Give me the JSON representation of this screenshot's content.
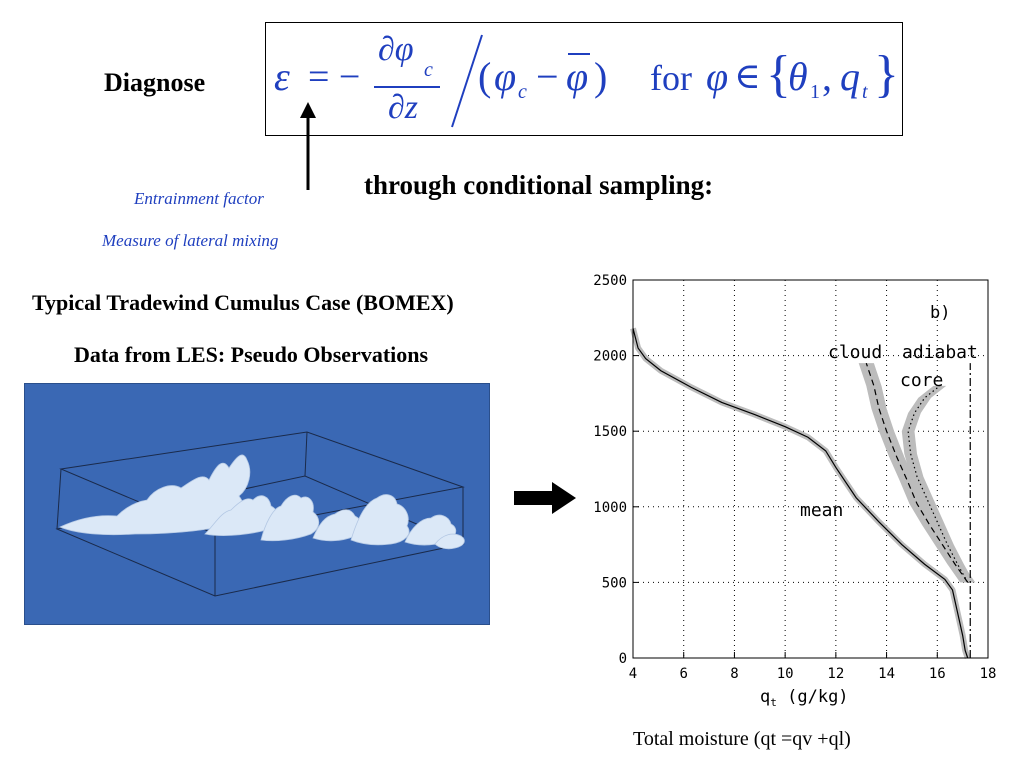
{
  "slide": {
    "diagnose_label": "Diagnose",
    "subtitle": "through conditional sampling:",
    "annotation_entrainment": "Entrainment factor",
    "annotation_mixing": "Measure of lateral mixing",
    "case_title": "Typical Tradewind Cumulus Case (BOMEX)",
    "data_source": "Data from LES: Pseudo Observations",
    "caption": "Total moisture (qt =qv +ql)"
  },
  "equation": {
    "lhs": "ε",
    "equals": "= −",
    "numerator": "∂φ",
    "numerator_sub": "c",
    "denominator": "∂z",
    "paren_open": "(",
    "phi_c": "φ",
    "phi_c_sub": "c",
    "minus": "−",
    "phi_bar": "φ",
    "paren_close": ")",
    "for_text": "for",
    "phi": "φ",
    "element_of": "∈",
    "set_open": "{",
    "theta": "θ",
    "theta_sub": "1",
    "comma": ",",
    "q": "q",
    "q_sub": "t",
    "set_close": "}"
  },
  "colors": {
    "equation_text": "#1f3fbf",
    "annotation_text": "#1f3fbf",
    "cloud_background": "#3a68b4",
    "cloud_fill": "#dbe8f7",
    "band_fill": "#bcbcbc"
  },
  "chart_data": {
    "type": "line",
    "panel_label": "b)",
    "xlabel": "q",
    "xlabel_sub": "t",
    "xlabel_units": "(g/kg)",
    "ylabel": "",
    "xlim": [
      4,
      18
    ],
    "ylim": [
      0,
      2500
    ],
    "x_ticks": [
      "4",
      "6",
      "8",
      "10",
      "12",
      "14",
      "16",
      "18"
    ],
    "y_ticks": [
      "0",
      "500",
      "1000",
      "1500",
      "2000",
      "2500"
    ],
    "grid": true,
    "annotations": {
      "cloud": "cloud",
      "adiabat": "adiabat",
      "core": "core",
      "mean": "mean"
    },
    "series": [
      {
        "name": "mean",
        "style": "solid",
        "points": [
          [
            17.2,
            0
          ],
          [
            17.1,
            50
          ],
          [
            17.0,
            150
          ],
          [
            16.8,
            300
          ],
          [
            16.6,
            450
          ],
          [
            16.3,
            520
          ],
          [
            15.5,
            620
          ],
          [
            14.6,
            750
          ],
          [
            13.7,
            900
          ],
          [
            12.8,
            1060
          ],
          [
            12.0,
            1260
          ],
          [
            11.6,
            1370
          ],
          [
            10.9,
            1460
          ],
          [
            10.0,
            1530
          ],
          [
            8.8,
            1610
          ],
          [
            7.5,
            1690
          ],
          [
            6.3,
            1790
          ],
          [
            5.1,
            1900
          ],
          [
            4.5,
            1980
          ],
          [
            4.2,
            2050
          ],
          [
            4.0,
            2180
          ]
        ]
      },
      {
        "name": "cloud",
        "style": "dashed",
        "band_halfwidth": 0.3,
        "points": [
          [
            17.2,
            500
          ],
          [
            16.7,
            620
          ],
          [
            16.2,
            750
          ],
          [
            15.7,
            880
          ],
          [
            15.2,
            1020
          ],
          [
            14.8,
            1180
          ],
          [
            14.4,
            1330
          ],
          [
            14.0,
            1500
          ],
          [
            13.7,
            1650
          ],
          [
            13.5,
            1800
          ],
          [
            13.2,
            1950
          ]
        ]
      },
      {
        "name": "core",
        "style": "dotted",
        "band_halfwidth": 0.25,
        "points": [
          [
            17.2,
            500
          ],
          [
            16.8,
            620
          ],
          [
            16.4,
            750
          ],
          [
            16.0,
            900
          ],
          [
            15.6,
            1050
          ],
          [
            15.2,
            1200
          ],
          [
            14.95,
            1350
          ],
          [
            14.85,
            1500
          ],
          [
            15.1,
            1620
          ],
          [
            15.5,
            1720
          ],
          [
            16.1,
            1800
          ]
        ]
      },
      {
        "name": "adiabat",
        "style": "dashdot",
        "points": [
          [
            17.3,
            0
          ],
          [
            17.3,
            1950
          ]
        ]
      }
    ]
  }
}
